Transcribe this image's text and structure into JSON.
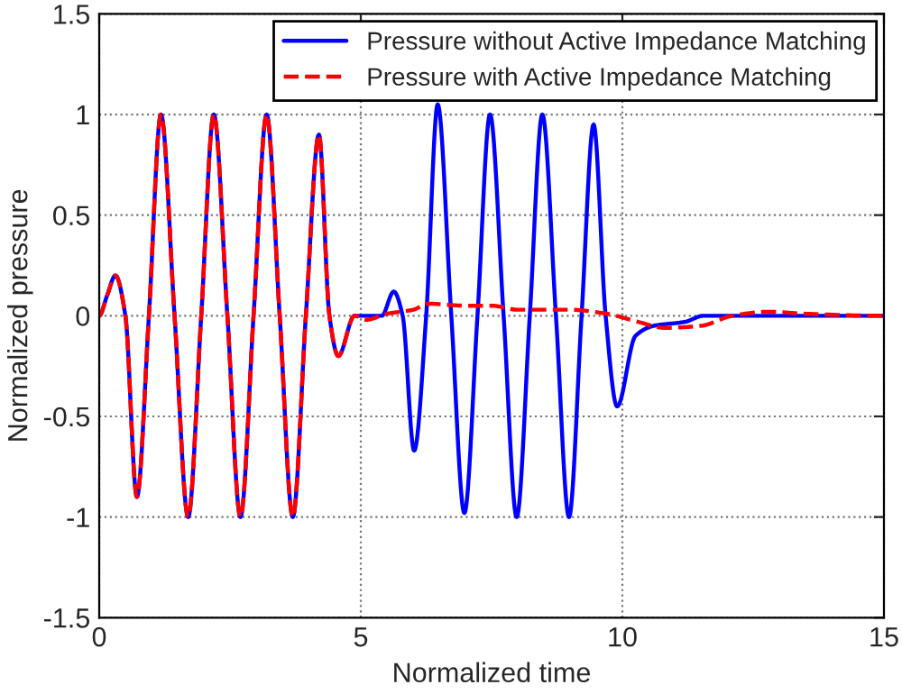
{
  "chart_data": {
    "type": "line",
    "xlabel": "Normalized time",
    "ylabel": "Normalized pressure",
    "xlim": [
      0,
      15
    ],
    "xticks": [
      0,
      5,
      10,
      15
    ],
    "ylim": [
      -1.5,
      1.5
    ],
    "yticks": [
      -1.5,
      -1,
      -0.5,
      0,
      0.5,
      1,
      1.5
    ],
    "grid": true,
    "legend": "top right",
    "series": [
      {
        "name": "Pressure without Active Impedance Matching",
        "color": "#0000ff",
        "line_style": "solid",
        "x": [
          0,
          0.15,
          0.31,
          0.5,
          0.72,
          0.95,
          1.18,
          1.44,
          1.7,
          1.95,
          2.19,
          2.45,
          2.7,
          2.95,
          3.2,
          3.45,
          3.7,
          3.95,
          4.2,
          4.4,
          4.57,
          4.88,
          5.4,
          5.63,
          5.8,
          6.02,
          6.25,
          6.47,
          6.73,
          6.98,
          7.23,
          7.47,
          7.73,
          7.98,
          8.23,
          8.47,
          8.73,
          8.98,
          9.22,
          9.45,
          9.68,
          9.9,
          10.25,
          10.6,
          11.2,
          11.55,
          15
        ],
        "values": [
          0,
          0.1,
          0.2,
          0,
          -0.9,
          0,
          1,
          0,
          -1,
          0,
          1,
          0,
          -1,
          0,
          1,
          0,
          -1,
          0,
          0.9,
          0,
          -0.2,
          0,
          0,
          0.12,
          0,
          -0.67,
          0,
          1.05,
          0,
          -0.98,
          0,
          1,
          0,
          -1,
          0,
          1,
          0,
          -1,
          0,
          0.95,
          0,
          -0.45,
          -0.1,
          -0.05,
          -0.03,
          0,
          0
        ]
      },
      {
        "name": "Pressure with Active Impedance Matching",
        "color": "#ff0000",
        "line_style": "dashed",
        "x": [
          0,
          0.15,
          0.31,
          0.5,
          0.72,
          0.95,
          1.18,
          1.44,
          1.7,
          1.95,
          2.19,
          2.45,
          2.7,
          2.95,
          3.2,
          3.45,
          3.7,
          3.95,
          4.2,
          4.4,
          4.57,
          4.88,
          5.1,
          5.5,
          6.0,
          6.3,
          7.0,
          7.5,
          8.0,
          9.0,
          9.7,
          10.3,
          10.8,
          11.5,
          12.1,
          12.8,
          13.5,
          15
        ],
        "values": [
          0,
          0.1,
          0.2,
          0,
          -0.9,
          0,
          1,
          0,
          -1,
          0,
          1,
          0,
          -1,
          0,
          1,
          0,
          -1,
          0,
          0.9,
          0,
          -0.2,
          0,
          -0.02,
          0.01,
          0.03,
          0.06,
          0.05,
          0.05,
          0.03,
          0.03,
          0.01,
          -0.03,
          -0.06,
          -0.05,
          0,
          0.02,
          0.01,
          0
        ]
      }
    ]
  }
}
